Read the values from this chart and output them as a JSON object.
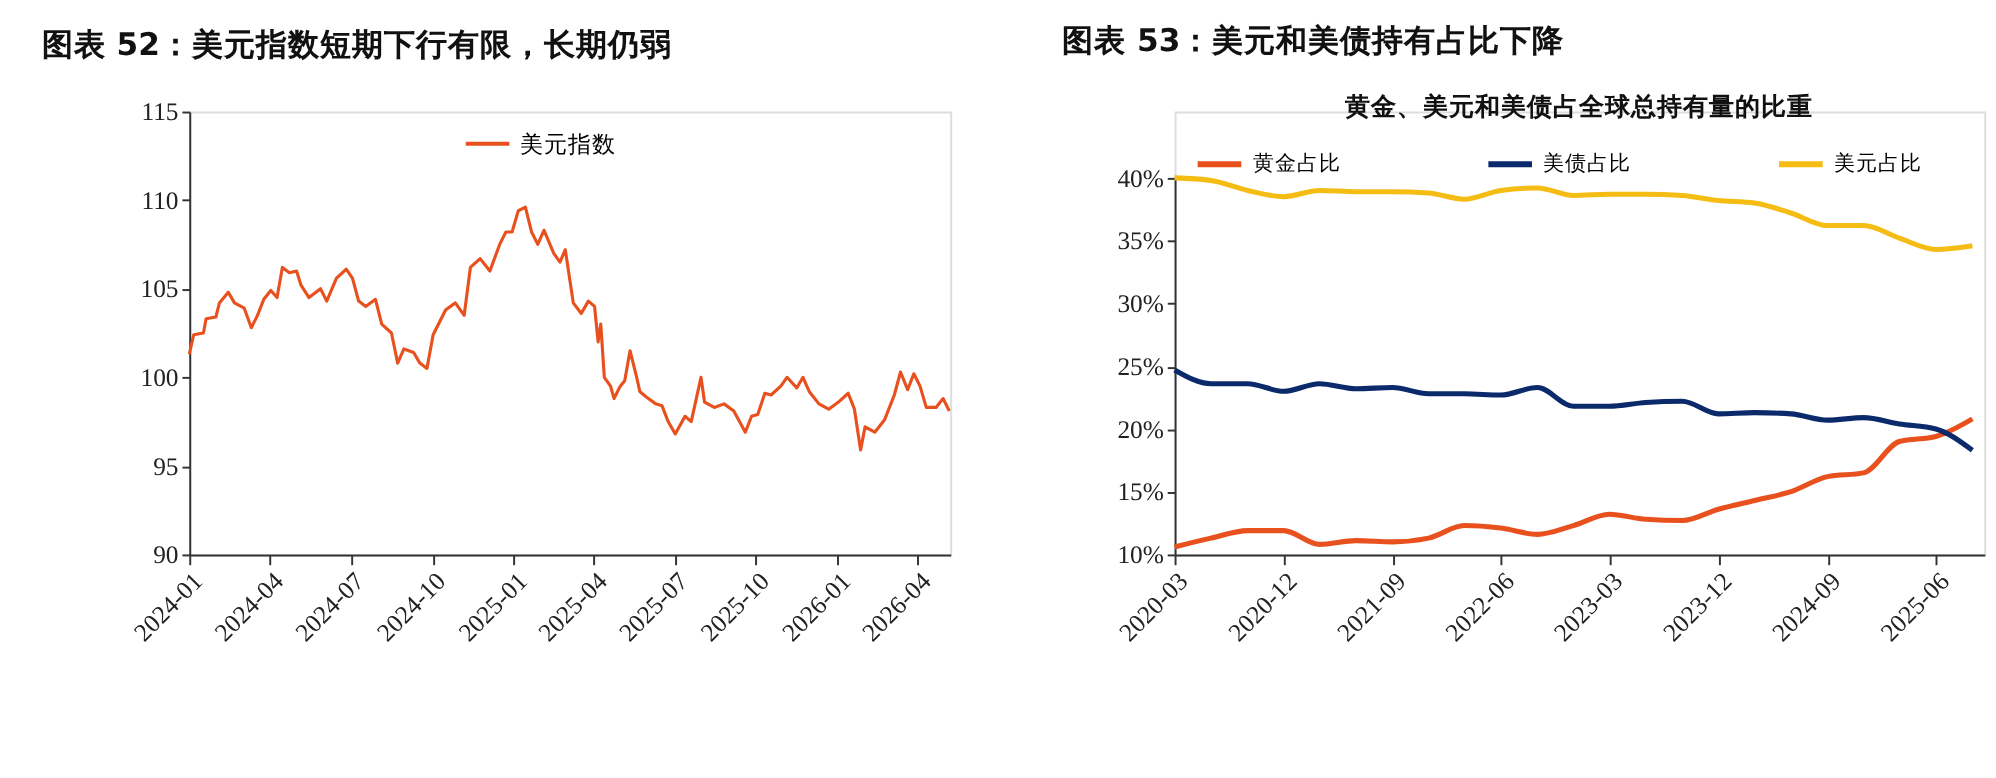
{
  "chart_data": [
    {
      "type": "line",
      "title": "图表 52：美元指数短期下行有限，长期仍弱",
      "legend": "top",
      "grid": false,
      "marker": "none",
      "line_style": "solid",
      "xlim": [
        "2024-01-01",
        "2026-05-08"
      ],
      "xticks": [
        "2024-01",
        "2024-04",
        "2024-07",
        "2024-10",
        "2025-01",
        "2025-04",
        "2025-07",
        "2025-10",
        "2026-01",
        "2026-04"
      ],
      "ylim": [
        90,
        115
      ],
      "yticks": [
        90,
        95,
        100,
        105,
        110,
        115
      ],
      "series": [
        {
          "name": "美元指数",
          "color": "#e8501e",
          "x": [
            "2024-01-01",
            "2024-01-06",
            "2024-01-17",
            "2024-01-20",
            "2024-01-31",
            "2024-02-04",
            "2024-02-14",
            "2024-02-21",
            "2024-03-03",
            "2024-03-11",
            "2024-03-18",
            "2024-03-25",
            "2024-04-02",
            "2024-04-09",
            "2024-04-15",
            "2024-04-23",
            "2024-05-01",
            "2024-05-06",
            "2024-05-15",
            "2024-05-28",
            "2024-06-04",
            "2024-06-15",
            "2024-06-26",
            "2024-07-03",
            "2024-07-10",
            "2024-07-18",
            "2024-07-29",
            "2024-08-05",
            "2024-08-16",
            "2024-08-23",
            "2024-08-30",
            "2024-09-10",
            "2024-09-17",
            "2024-09-25",
            "2024-10-02",
            "2024-10-16",
            "2024-10-27",
            "2024-11-06",
            "2024-11-13",
            "2024-11-24",
            "2024-12-05",
            "2024-12-16",
            "2024-12-23",
            "2024-12-30",
            "2025-01-06",
            "2025-01-14",
            "2025-01-21",
            "2025-01-28",
            "2025-02-04",
            "2025-02-15",
            "2025-02-22",
            "2025-02-28",
            "2025-03-09",
            "2025-03-18",
            "2025-03-26",
            "2025-04-02",
            "2025-04-06",
            "2025-04-09",
            "2025-04-13",
            "2025-04-20",
            "2025-04-24",
            "2025-05-01",
            "2025-05-06",
            "2025-05-12",
            "2025-05-19",
            "2025-05-23",
            "2025-05-30",
            "2025-06-10",
            "2025-06-17",
            "2025-06-24",
            "2025-07-02",
            "2025-07-13",
            "2025-07-20",
            "2025-07-31",
            "2025-08-04",
            "2025-08-15",
            "2025-08-26",
            "2025-09-06",
            "2025-09-19",
            "2025-09-26",
            "2025-10-03",
            "2025-10-11",
            "2025-10-18",
            "2025-10-29",
            "2025-11-05",
            "2025-11-16",
            "2025-11-23",
            "2025-11-30",
            "2025-12-11",
            "2025-12-22",
            "2026-01-02",
            "2026-01-13",
            "2026-01-20",
            "2026-01-27",
            "2026-02-01",
            "2026-02-12",
            "2026-02-23",
            "2026-03-06",
            "2026-03-13",
            "2026-03-21",
            "2026-03-28",
            "2026-04-04",
            "2026-04-11",
            "2026-04-22",
            "2026-04-30",
            "2026-05-07"
          ],
          "values": [
            101.3,
            102.4,
            102.5,
            103.3,
            103.4,
            104.2,
            104.8,
            104.2,
            103.9,
            102.8,
            103.5,
            104.4,
            104.9,
            104.5,
            106.2,
            105.9,
            106.0,
            105.2,
            104.5,
            105.0,
            104.3,
            105.6,
            106.1,
            105.6,
            104.3,
            104.0,
            104.4,
            103.0,
            102.5,
            100.8,
            101.6,
            101.4,
            100.8,
            100.5,
            102.4,
            103.8,
            104.2,
            103.5,
            106.2,
            106.7,
            106.0,
            107.5,
            108.2,
            108.2,
            109.4,
            109.6,
            108.2,
            107.5,
            108.3,
            107.0,
            106.5,
            107.2,
            104.2,
            103.6,
            104.3,
            104.0,
            102.0,
            103.0,
            100.0,
            99.5,
            98.8,
            99.5,
            99.8,
            101.5,
            100.1,
            99.2,
            98.9,
            98.5,
            98.4,
            97.5,
            96.8,
            97.8,
            97.5,
            100.0,
            98.6,
            98.3,
            98.5,
            98.1,
            96.9,
            97.8,
            97.9,
            99.1,
            99.0,
            99.5,
            100.0,
            99.4,
            100.0,
            99.2,
            98.5,
            98.2,
            98.6,
            99.1,
            98.2,
            95.9,
            97.2,
            96.9,
            97.6,
            99.0,
            100.3,
            99.3,
            100.2,
            99.5,
            98.3,
            98.3,
            98.8,
            98.1
          ]
        }
      ]
    },
    {
      "type": "line",
      "title": "图表 53：美元和美债持有占比下降",
      "subtitle": "黄金、美元和美债占全球总持有量的比重",
      "legend": "top",
      "grid": false,
      "marker": "none",
      "line_style": "solid",
      "xlim": [
        "2020-03",
        "2025-10"
      ],
      "xticks": [
        "2020-03",
        "2020-12",
        "2021-09",
        "2022-06",
        "2023-03",
        "2023-12",
        "2024-09",
        "2025-06"
      ],
      "ylim": [
        10,
        40
      ],
      "yticks": [
        {
          "value": 10,
          "label": "10%"
        },
        {
          "value": 15,
          "label": "15%"
        },
        {
          "value": 20,
          "label": "20%"
        },
        {
          "value": 25,
          "label": "25%"
        },
        {
          "value": 30,
          "label": "30%"
        },
        {
          "value": 35,
          "label": "35%"
        },
        {
          "value": 40,
          "label": "40%"
        }
      ],
      "x": [
        "2020-03",
        "2020-06",
        "2020-09",
        "2020-12",
        "2021-03",
        "2021-06",
        "2021-09",
        "2021-12",
        "2022-03",
        "2022-06",
        "2022-09",
        "2022-12",
        "2023-03",
        "2023-06",
        "2023-09",
        "2023-12",
        "2024-03",
        "2024-06",
        "2024-09",
        "2024-12",
        "2025-03",
        "2025-06",
        "2025-09"
      ],
      "series": [
        {
          "name": "黄金占比",
          "color": "#e8501e",
          "values": [
            10.6,
            11.3,
            11.9,
            11.9,
            10.8,
            11.1,
            11.0,
            11.3,
            12.3,
            12.1,
            11.6,
            12.3,
            13.2,
            12.8,
            12.7,
            13.6,
            14.3,
            15.0,
            16.2,
            16.5,
            19.0,
            19.4,
            20.8
          ]
        },
        {
          "name": "美债占比",
          "color": "#0b2a6b",
          "values": [
            24.7,
            23.6,
            23.6,
            23.0,
            23.6,
            23.2,
            23.3,
            22.8,
            22.8,
            22.7,
            23.3,
            21.8,
            21.8,
            22.1,
            22.2,
            21.2,
            21.3,
            21.2,
            20.7,
            20.9,
            20.4,
            20.0,
            18.3
          ]
        },
        {
          "name": "美元占比",
          "color": "#f5bc14",
          "values": [
            40.0,
            39.8,
            39.0,
            38.5,
            39.0,
            38.9,
            38.9,
            38.8,
            38.3,
            39.0,
            39.2,
            38.6,
            38.7,
            38.7,
            38.6,
            38.2,
            38.0,
            37.2,
            36.2,
            36.2,
            35.2,
            34.3,
            34.6
          ]
        }
      ]
    }
  ]
}
